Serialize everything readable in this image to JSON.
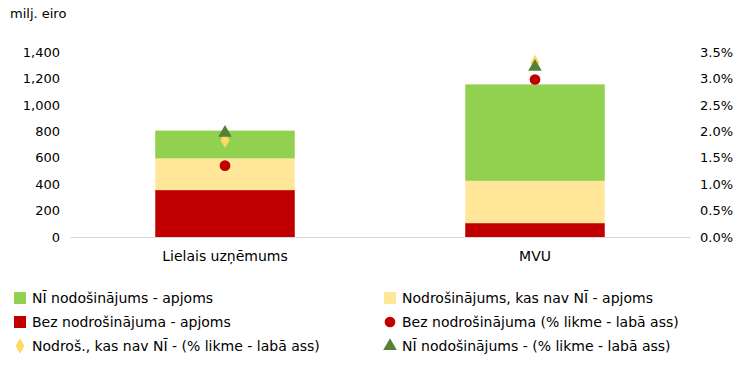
{
  "chart_data": {
    "type": "bar",
    "stacked": true,
    "y_label": "milj. eiro",
    "categories": [
      "Lielais uzņēmums",
      "MVU"
    ],
    "ylim": [
      0,
      1400
    ],
    "yticks": [
      0,
      200,
      400,
      600,
      800,
      {
        "value": 1000,
        "label": "1,000"
      },
      {
        "value": 1200,
        "label": "1,200"
      },
      {
        "value": 1400,
        "label": "1,400"
      }
    ],
    "y2lim": [
      0,
      3.5
    ],
    "y2ticks": [
      {
        "value": 0,
        "label": "0.0%"
      },
      {
        "value": 0.5,
        "label": "0.5%"
      },
      {
        "value": 1,
        "label": "1.0%"
      },
      {
        "value": 1.5,
        "label": "1.5%"
      },
      {
        "value": 2,
        "label": "2.0%"
      },
      {
        "value": 2.5,
        "label": "2.5%"
      },
      {
        "value": 3,
        "label": "3.0%"
      },
      {
        "value": 3.5,
        "label": "3.5%"
      }
    ],
    "grid": false,
    "legend": "bottom",
    "series": [
      {
        "name": "NĪ nodošinājums - apjoms",
        "type": "bar",
        "color": "#92d050",
        "values": [
          210,
          730
        ]
      },
      {
        "name": "Nodrošinājums, kas nav NĪ - apjoms",
        "type": "bar",
        "color": "#ffe699",
        "values": [
          240,
          320
        ]
      },
      {
        "name": "Bez nodrošinājuma - apjoms",
        "type": "bar",
        "color": "#c00000",
        "values": [
          355,
          105
        ]
      },
      {
        "name": "Bez nodrošinājuma (% likme - labā ass)",
        "type": "scatter",
        "axis": "y2",
        "marker": "circle",
        "color": "#c00000",
        "values": [
          1.35,
          2.98
        ]
      },
      {
        "name": "Nodroš., kas nav NĪ - (% likme - labā ass)",
        "type": "scatter",
        "axis": "y2",
        "marker": "diamond",
        "color": "#ffd966",
        "values": [
          1.83,
          3.3
        ]
      },
      {
        "name": "NĪ nodošinājums - (% likme - labā ass)",
        "type": "scatter",
        "axis": "y2",
        "marker": "triangle",
        "color": "#548235",
        "values": [
          1.97,
          3.22
        ]
      }
    ]
  }
}
